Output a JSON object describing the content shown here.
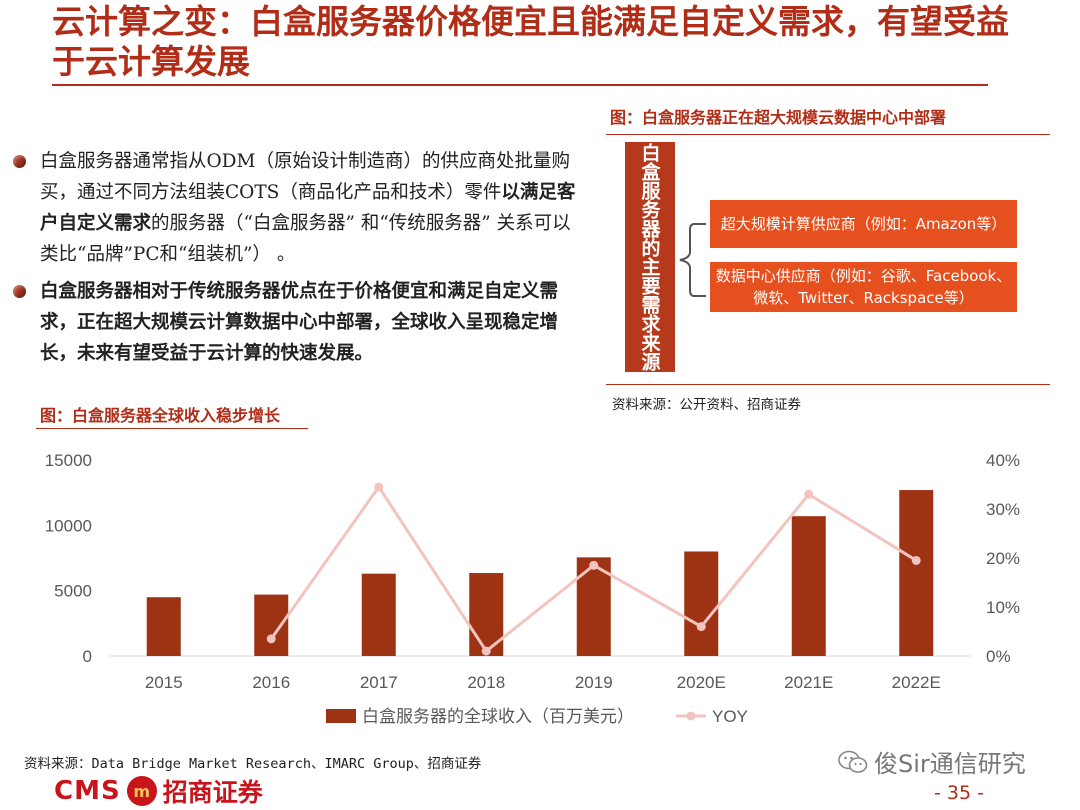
{
  "title": "云计算之变：白盒服务器价格便宜且能满足自定义需求，有望受益于云计算发展",
  "diagram": {
    "caption": "图：白盒服务器正在超大规模云数据中心中部署",
    "vertical_label": "白盒服务器的主要需求来源",
    "item1": "超大规模计算供应商（例如：Amazon等）",
    "item2_line1": "数据中心供应商（例如：谷歌、Facebook、",
    "item2_line2": "微软、Twitter、Rackspace等）",
    "source": "资料来源：公开资料、招商证券"
  },
  "bullets": [
    {
      "part1": "白盒服务器通常指从ODM（原始设计制造商）的供应商处批量购买，通过不同方法组装COTS（商品化产品和技术）零件",
      "bold": "以满足客户自定义需求",
      "part2": "的服务器（“白盒服务器” 和“传统服务器” 关系可以类比“品牌”PC和“组装机”） 。"
    },
    {
      "bold": "白盒服务器相对于传统服务器优点在于价格便宜和满足自定义需求，正在超大规模云计算数据中心中部署，全球收入呈现稳定增长，未来有望受益于云计算的快速发展。"
    }
  ],
  "chart_caption": "图：白盒服务器全球收入稳步增长",
  "chart_data": {
    "type": "bar",
    "categories": [
      "2015",
      "2016",
      "2017",
      "2018",
      "2019",
      "2020E",
      "2021E",
      "2022E"
    ],
    "series": [
      {
        "name": "白盒服务器的全球收入（百万美元）",
        "type": "bar",
        "axis": "left",
        "color": "#9e3314",
        "values": [
          4500,
          4700,
          6300,
          6350,
          7550,
          8000,
          10700,
          12700
        ]
      },
      {
        "name": "YOY",
        "type": "line",
        "axis": "right",
        "color": "#f3c3bf",
        "values": [
          null,
          3.5,
          34.5,
          1,
          18.5,
          6,
          33,
          19.5
        ]
      }
    ],
    "y_left": {
      "min": 0,
      "max": 15000,
      "ticks": [
        "0",
        "5000",
        "10000",
        "15000"
      ]
    },
    "y_right": {
      "min": 0,
      "max": 40,
      "ticks": [
        "0%",
        "10%",
        "20%",
        "30%",
        "40%"
      ]
    },
    "legend_position": "bottom",
    "grid": false
  },
  "chart_source": "资料来源：Data Bridge Market Research、IMARC Group、招商证券",
  "logo": {
    "latin": "CMS",
    "seal": "m",
    "chinese": "招商证券"
  },
  "watermark": "俊Sir通信研究",
  "page_number": "- 35 -",
  "colors": {
    "accent": "#b22d17",
    "bar": "#9e3314",
    "line": "#f3c3bf",
    "box": "#e64f1e"
  }
}
